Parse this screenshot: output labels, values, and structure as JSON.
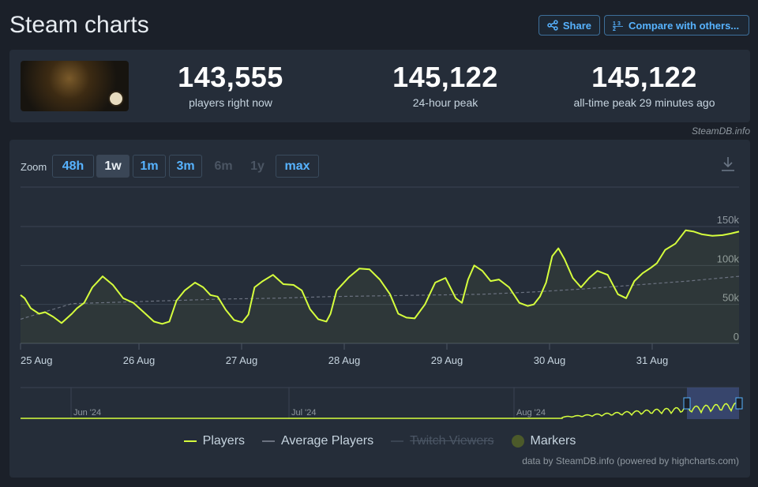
{
  "page": {
    "title": "Steam charts"
  },
  "actions": {
    "share_label": "Share",
    "compare_label": "Compare with others..."
  },
  "summary": {
    "players_now": "143,555",
    "players_now_label": "players right now",
    "peak_24h": "145,122",
    "peak_24h_label": "24-hour peak",
    "peak_all": "145,122",
    "peak_all_label": "all-time peak 29 minutes ago",
    "credit": "SteamDB.info"
  },
  "zoom": {
    "label": "Zoom",
    "options": [
      {
        "label": "48h",
        "state": "enabled"
      },
      {
        "label": "1w",
        "state": "active"
      },
      {
        "label": "1m",
        "state": "enabled"
      },
      {
        "label": "3m",
        "state": "enabled"
      },
      {
        "label": "6m",
        "state": "disabled"
      },
      {
        "label": "1y",
        "state": "disabled"
      },
      {
        "label": "max",
        "state": "enabled"
      }
    ]
  },
  "legend": {
    "players": "Players",
    "average": "Average Players",
    "twitch": "Twitch Viewers",
    "markers": "Markers"
  },
  "credit_bottom": "data by SteamDB.info (powered by highcharts.com)",
  "colors": {
    "players": "#d6ff3d",
    "average": "#6b7280",
    "accent": "#57b3ff",
    "navigator_bg": "#3b4a75"
  },
  "chart_data": {
    "type": "line",
    "x_ticks": [
      "25 Aug",
      "26 Aug",
      "27 Aug",
      "28 Aug",
      "29 Aug",
      "30 Aug",
      "31 Aug"
    ],
    "y_ticks": [
      "0",
      "50k",
      "100k",
      "150k"
    ],
    "ylim": [
      0,
      150000
    ],
    "series": [
      {
        "name": "Players",
        "x_days": [
          0,
          0.04,
          0.1,
          0.18,
          0.24,
          0.32,
          0.4,
          0.5,
          0.55,
          0.62,
          0.7,
          0.8,
          0.9,
          1.0,
          1.1,
          1.2,
          1.3,
          1.38,
          1.45,
          1.52,
          1.6,
          1.7,
          1.78,
          1.85,
          1.92,
          2.0,
          2.08,
          2.16,
          2.22,
          2.28,
          2.36,
          2.46,
          2.56,
          2.66,
          2.74,
          2.82,
          2.9,
          2.98,
          3.02,
          3.08,
          3.2,
          3.3,
          3.4,
          3.5,
          3.6,
          3.68,
          3.76,
          3.84,
          3.94,
          4.04,
          4.14,
          4.24,
          4.3,
          4.36,
          4.42,
          4.5,
          4.58,
          4.66,
          4.76,
          4.86,
          4.94,
          5.0,
          5.06,
          5.12,
          5.18,
          5.24,
          5.3,
          5.38,
          5.46,
          5.54,
          5.62,
          5.72,
          5.82,
          5.9,
          5.98,
          6.06,
          6.14,
          6.2,
          6.28,
          6.38,
          6.48,
          6.56,
          6.64,
          6.74,
          6.84,
          6.92,
          7.0
        ],
        "values": [
          62000,
          58000,
          45000,
          38000,
          40000,
          34000,
          26000,
          38000,
          45000,
          52000,
          72000,
          86000,
          75000,
          58000,
          52000,
          40000,
          28000,
          25000,
          28000,
          55000,
          68000,
          78000,
          72000,
          62000,
          60000,
          43000,
          30000,
          27000,
          37000,
          72000,
          80000,
          88000,
          76000,
          75000,
          68000,
          44000,
          31000,
          28000,
          38000,
          68000,
          85000,
          96000,
          95000,
          82000,
          63000,
          38000,
          33000,
          32000,
          50000,
          78000,
          84000,
          58000,
          52000,
          82000,
          100000,
          93000,
          80000,
          82000,
          72000,
          52000,
          48000,
          50000,
          60000,
          78000,
          112000,
          122000,
          108000,
          84000,
          72000,
          84000,
          93000,
          88000,
          63000,
          58000,
          80000,
          90000,
          97000,
          103000,
          120000,
          128000,
          145122,
          143555,
          140000,
          138000,
          139000,
          141000,
          143555
        ]
      },
      {
        "name": "Average Players",
        "x_days": [
          0,
          0.5,
          1,
          1.5,
          2,
          2.5,
          3,
          3.5,
          4,
          4.5,
          5,
          5.5,
          6,
          6.5,
          7
        ],
        "values": [
          31000,
          51000,
          53000,
          55000,
          57000,
          58000,
          60000,
          61000,
          62000,
          63000,
          66000,
          70000,
          75000,
          80000,
          86000
        ]
      }
    ],
    "navigator": {
      "labels": [
        "Jun '24",
        "Jul '24",
        "Aug '24"
      ]
    }
  }
}
